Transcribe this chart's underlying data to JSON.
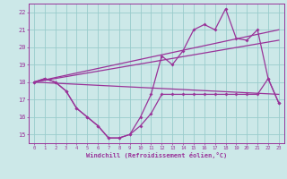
{
  "xlabel": "Windchill (Refroidissement éolien,°C)",
  "background_color": "#cce8e8",
  "grid_color": "#99cccc",
  "line_color": "#993399",
  "xlim": [
    -0.5,
    23.5
  ],
  "ylim": [
    14.5,
    22.5
  ],
  "xticks": [
    0,
    1,
    2,
    3,
    4,
    5,
    6,
    7,
    8,
    9,
    10,
    11,
    12,
    13,
    14,
    15,
    16,
    17,
    18,
    19,
    20,
    21,
    22,
    23
  ],
  "yticks": [
    15,
    16,
    17,
    18,
    19,
    20,
    21,
    22
  ],
  "series_low_x": [
    0,
    1,
    2,
    3,
    4,
    5,
    6,
    7,
    8,
    9,
    10,
    11,
    12,
    13,
    14,
    15,
    16,
    17,
    18,
    19,
    20,
    21,
    22,
    23
  ],
  "series_low_y": [
    18.0,
    18.2,
    18.0,
    17.5,
    16.5,
    16.0,
    15.5,
    14.8,
    14.8,
    15.0,
    15.5,
    16.2,
    17.3,
    17.3,
    17.3,
    17.3,
    17.3,
    17.3,
    17.3,
    17.3,
    17.3,
    17.3,
    18.2,
    16.8
  ],
  "series_high_x": [
    0,
    1,
    2,
    3,
    4,
    5,
    6,
    7,
    8,
    9,
    10,
    11,
    12,
    13,
    14,
    15,
    16,
    17,
    18,
    19,
    20,
    21,
    22,
    23
  ],
  "series_high_y": [
    18.0,
    18.2,
    18.0,
    17.5,
    16.5,
    16.0,
    15.5,
    14.8,
    14.8,
    15.0,
    16.0,
    17.3,
    19.5,
    19.0,
    19.8,
    21.0,
    21.3,
    21.0,
    22.2,
    20.5,
    20.4,
    21.0,
    18.2,
    16.8
  ],
  "trend1_x": [
    0,
    23
  ],
  "trend1_y": [
    18.0,
    17.3
  ],
  "trend2_x": [
    0,
    23
  ],
  "trend2_y": [
    18.0,
    21.0
  ],
  "trend3_x": [
    0,
    23
  ],
  "trend3_y": [
    18.0,
    20.4
  ]
}
